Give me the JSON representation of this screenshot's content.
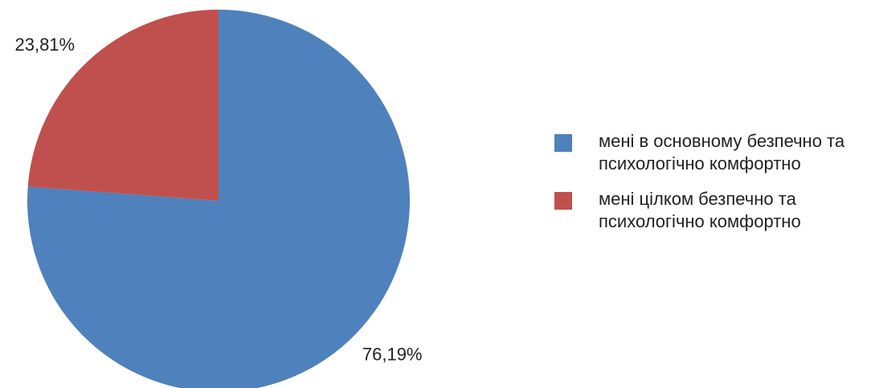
{
  "chart_data": {
    "type": "pie",
    "categories": [
      "мені в основному безпечно та психологічно комфортно",
      "мені цілком безпечно та психологічно комфортно"
    ],
    "values": [
      76.19,
      23.81
    ],
    "value_labels": [
      "76,19%",
      "23,81%"
    ],
    "colors": [
      "#4f81bd",
      "#c0504d"
    ],
    "legend": "right"
  }
}
